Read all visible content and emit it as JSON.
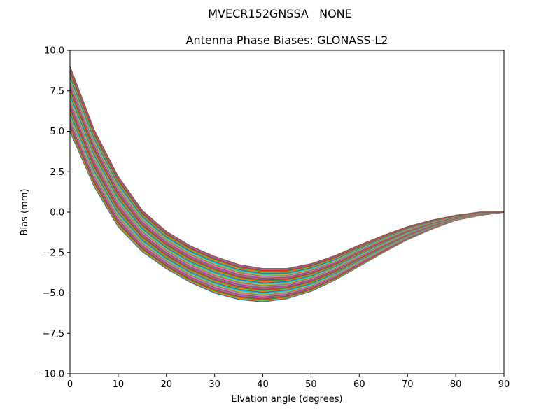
{
  "figure": {
    "suptitle": "MVECR152GNSSA   NONE"
  },
  "chart_data": {
    "type": "line",
    "title": "Antenna Phase Biases: GLONASS-L2",
    "xlabel": "Elvation angle (degrees)",
    "ylabel": "Bias (mm)",
    "xlim": [
      0,
      90
    ],
    "ylim": [
      -10,
      10
    ],
    "xticks": [
      0,
      10,
      20,
      30,
      40,
      50,
      60,
      70,
      80,
      90
    ],
    "yticks": [
      -10.0,
      -7.5,
      -5.0,
      -2.5,
      0.0,
      2.5,
      5.0,
      7.5,
      10.0
    ],
    "xtick_labels": [
      "0",
      "10",
      "20",
      "30",
      "40",
      "50",
      "60",
      "70",
      "80",
      "90"
    ],
    "ytick_labels": [
      "−10.0",
      "−7.5",
      "−5.0",
      "−2.5",
      "0.0",
      "2.5",
      "5.0",
      "7.5",
      "10.0"
    ],
    "grid": false,
    "legend": "none",
    "x": [
      0,
      5,
      10,
      15,
      20,
      25,
      30,
      35,
      40,
      45,
      50,
      55,
      60,
      65,
      70,
      75,
      80,
      85,
      90
    ],
    "series_count": 36,
    "envelope": {
      "upper": [
        9.0,
        5.1,
        2.2,
        0.1,
        -1.2,
        -2.1,
        -2.75,
        -3.25,
        -3.5,
        -3.5,
        -3.2,
        -2.7,
        -2.05,
        -1.45,
        -0.9,
        -0.5,
        -0.2,
        0.0,
        0.0
      ],
      "lower": [
        5.0,
        1.6,
        -0.9,
        -2.45,
        -3.5,
        -4.35,
        -5.0,
        -5.4,
        -5.55,
        -5.35,
        -4.9,
        -4.2,
        -3.35,
        -2.5,
        -1.7,
        -1.05,
        -0.5,
        -0.2,
        0.0
      ]
    },
    "colors": [
      "#1f77b4",
      "#ff7f0e",
      "#2ca02c",
      "#d62728",
      "#9467bd",
      "#8c564b",
      "#e377c2",
      "#7f7f7f",
      "#bcbd22",
      "#17becf"
    ]
  }
}
